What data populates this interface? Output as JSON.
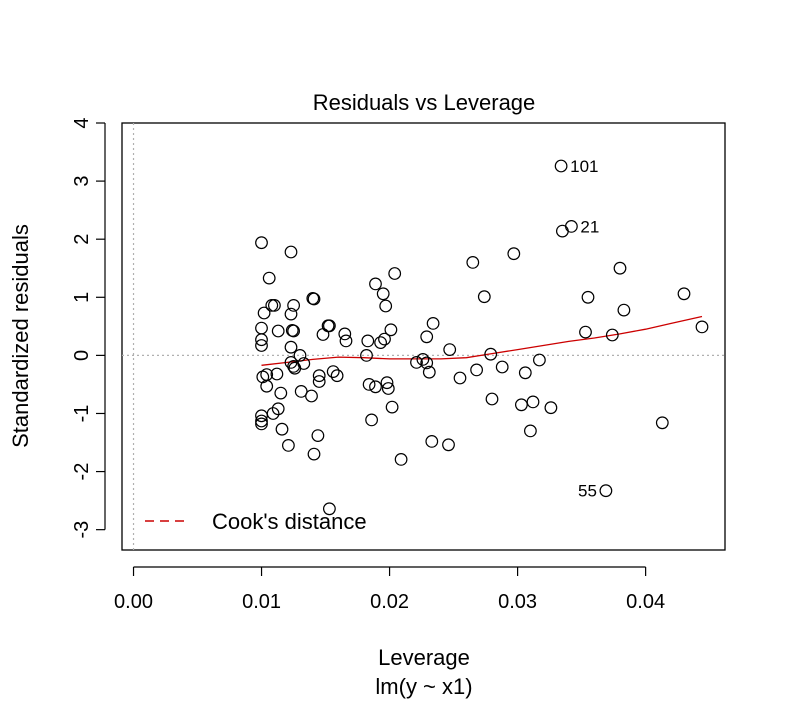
{
  "chart_data": {
    "type": "scatter",
    "title": "Residuals vs Leverage",
    "xlabel": "Leverage",
    "xsubtitle": "lm(y ~ x1)",
    "ylabel": "Standardized residuals",
    "xlim": [
      -0.0009,
      0.0462
    ],
    "ylim": [
      -3.35,
      4.0
    ],
    "x_ticks": [
      0.0,
      0.01,
      0.02,
      0.03,
      0.04
    ],
    "x_tick_labels": [
      "0.00",
      "0.01",
      "0.02",
      "0.03",
      "0.04"
    ],
    "y_ticks": [
      -3,
      -2,
      -1,
      0,
      1,
      2,
      3,
      4
    ],
    "y_tick_labels": [
      "-3",
      "-2",
      "-1",
      "0",
      "1",
      "2",
      "3",
      "4"
    ],
    "reference_lines": {
      "x": 0,
      "y": 0,
      "style": "dotted",
      "color": "#b0b0b0"
    },
    "grid": false,
    "legend": {
      "position": "bottom-left",
      "entries": [
        {
          "label": "Cook's distance",
          "style": "dashed",
          "color": "#cc0000"
        }
      ]
    },
    "labeled_points": [
      {
        "label": "101",
        "x": 0.0334,
        "y": 3.26
      },
      {
        "label": "21",
        "x": 0.0342,
        "y": 2.22
      },
      {
        "label": "55",
        "x": 0.0369,
        "y": -2.33
      }
    ],
    "points": [
      [
        0.0334,
        3.26
      ],
      [
        0.0342,
        2.22
      ],
      [
        0.0335,
        2.14
      ],
      [
        0.0369,
        -2.33
      ],
      [
        0.01,
        1.94
      ],
      [
        0.0123,
        1.78
      ],
      [
        0.0106,
        1.33
      ],
      [
        0.014,
        0.98
      ],
      [
        0.0141,
        0.97
      ],
      [
        0.0108,
        0.86
      ],
      [
        0.011,
        0.86
      ],
      [
        0.0125,
        0.86
      ],
      [
        0.0102,
        0.73
      ],
      [
        0.0123,
        0.71
      ],
      [
        0.01,
        0.47
      ],
      [
        0.0124,
        0.43
      ],
      [
        0.0113,
        0.42
      ],
      [
        0.0125,
        0.42
      ],
      [
        0.01,
        0.27
      ],
      [
        0.01,
        0.17
      ],
      [
        0.0123,
        0.14
      ],
      [
        0.013,
        0.0
      ],
      [
        0.0123,
        -0.12
      ],
      [
        0.0125,
        -0.19
      ],
      [
        0.0133,
        -0.14
      ],
      [
        0.0126,
        -0.22
      ],
      [
        0.0112,
        -0.32
      ],
      [
        0.0101,
        -0.37
      ],
      [
        0.0104,
        -0.33
      ],
      [
        0.0104,
        -0.53
      ],
      [
        0.0115,
        -0.65
      ],
      [
        0.0131,
        -0.62
      ],
      [
        0.0139,
        -0.7
      ],
      [
        0.0113,
        -0.92
      ],
      [
        0.0109,
        -1.0
      ],
      [
        0.01,
        -1.04
      ],
      [
        0.01,
        -1.13
      ],
      [
        0.01,
        -1.18
      ],
      [
        0.0116,
        -1.27
      ],
      [
        0.0121,
        -1.55
      ],
      [
        0.0144,
        -1.38
      ],
      [
        0.0141,
        -1.7
      ],
      [
        0.0153,
        -2.64
      ],
      [
        0.0145,
        -0.35
      ],
      [
        0.0145,
        -0.45
      ],
      [
        0.0156,
        -0.28
      ],
      [
        0.0159,
        -0.35
      ],
      [
        0.0148,
        0.36
      ],
      [
        0.0152,
        0.51
      ],
      [
        0.0153,
        0.51
      ],
      [
        0.0165,
        0.37
      ],
      [
        0.0166,
        0.25
      ],
      [
        0.0182,
        0.0
      ],
      [
        0.0183,
        0.25
      ],
      [
        0.0189,
        1.23
      ],
      [
        0.0195,
        1.06
      ],
      [
        0.0197,
        0.85
      ],
      [
        0.0193,
        0.22
      ],
      [
        0.0196,
        0.28
      ],
      [
        0.0201,
        0.44
      ],
      [
        0.0204,
        1.41
      ],
      [
        0.0184,
        -0.5
      ],
      [
        0.0189,
        -0.54
      ],
      [
        0.0198,
        -0.47
      ],
      [
        0.0199,
        -0.57
      ],
      [
        0.0202,
        -0.89
      ],
      [
        0.0186,
        -1.11
      ],
      [
        0.0209,
        -1.79
      ],
      [
        0.0221,
        -0.12
      ],
      [
        0.0226,
        -0.07
      ],
      [
        0.0229,
        -0.13
      ],
      [
        0.0229,
        0.32
      ],
      [
        0.0234,
        0.55
      ],
      [
        0.0231,
        -0.29
      ],
      [
        0.0233,
        -1.48
      ],
      [
        0.0247,
        0.1
      ],
      [
        0.0246,
        -1.54
      ],
      [
        0.0255,
        -0.39
      ],
      [
        0.0265,
        1.6
      ],
      [
        0.0268,
        -0.25
      ],
      [
        0.0274,
        1.01
      ],
      [
        0.0279,
        0.02
      ],
      [
        0.028,
        -0.75
      ],
      [
        0.0288,
        -0.2
      ],
      [
        0.0297,
        1.75
      ],
      [
        0.0303,
        -0.85
      ],
      [
        0.0306,
        -0.3
      ],
      [
        0.031,
        -1.3
      ],
      [
        0.0312,
        -0.8
      ],
      [
        0.0317,
        -0.08
      ],
      [
        0.0326,
        -0.9
      ],
      [
        0.0353,
        0.4
      ],
      [
        0.0355,
        1.0
      ],
      [
        0.0374,
        0.35
      ],
      [
        0.038,
        1.5
      ],
      [
        0.0383,
        0.78
      ],
      [
        0.0413,
        -1.16
      ],
      [
        0.043,
        1.06
      ],
      [
        0.0444,
        0.49
      ]
    ],
    "smooth_line": {
      "color": "#cc0000",
      "x": [
        0.01,
        0.012,
        0.014,
        0.016,
        0.018,
        0.02,
        0.022,
        0.024,
        0.026,
        0.028,
        0.03,
        0.032,
        0.034,
        0.036,
        0.038,
        0.04,
        0.042,
        0.0444
      ],
      "y": [
        -0.17,
        -0.12,
        -0.07,
        -0.03,
        -0.04,
        -0.06,
        -0.06,
        -0.06,
        -0.04,
        0.03,
        0.1,
        0.17,
        0.24,
        0.3,
        0.37,
        0.45,
        0.55,
        0.67
      ]
    }
  }
}
